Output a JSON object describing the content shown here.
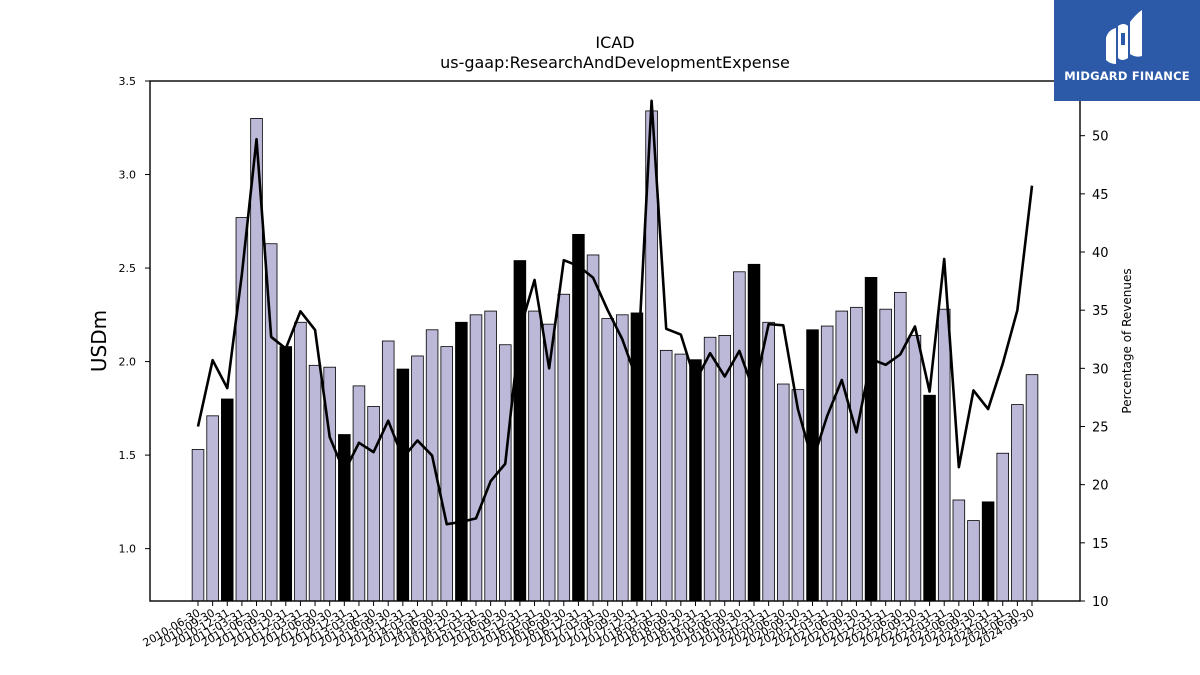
{
  "brand": {
    "name": "MIDGARD FINANCE",
    "icon": "midgard-logo-icon",
    "bg_color": "#2c5aa9"
  },
  "chart_data": {
    "type": "bar",
    "title": "ICAD",
    "subtitle": "us-gaap:ResearchAndDevelopmentExpense",
    "ylabel": "USDm",
    "y2label": "Percentage of Revenues",
    "ylim": [
      0.72,
      3.5
    ],
    "y2lim": [
      10,
      54.7
    ],
    "yticks": [
      "1.0",
      "1.5",
      "2.0",
      "2.5",
      "3.0",
      "3.5"
    ],
    "y2ticks": [
      "10",
      "15",
      "20",
      "25",
      "30",
      "35",
      "40",
      "45",
      "50"
    ],
    "bar_color": "#bcb9d8",
    "highlight_color": "#000000",
    "line_color": "#000000",
    "categories": [
      "2010-06-30",
      "2010-09-30",
      "2010-12-31",
      "2011-03-31",
      "2011-06-30",
      "2011-09-30",
      "2011-12-31",
      "2012-03-31",
      "2012-06-30",
      "2012-09-30",
      "2012-12-31",
      "2013-03-31",
      "2013-06-30",
      "2013-09-30",
      "2013-12-31",
      "2014-03-31",
      "2014-06-30",
      "2014-09-30",
      "2014-12-31",
      "2015-03-31",
      "2015-06-30",
      "2015-09-30",
      "2015-12-31",
      "2016-03-31",
      "2016-06-30",
      "2016-09-30",
      "2016-12-31",
      "2017-03-31",
      "2017-06-30",
      "2017-09-30",
      "2017-12-31",
      "2018-03-31",
      "2018-06-30",
      "2018-09-30",
      "2018-12-31",
      "2019-03-31",
      "2019-06-30",
      "2019-09-30",
      "2019-12-31",
      "2020-03-31",
      "2020-06-30",
      "2020-09-30",
      "2020-12-31",
      "2021-03-31",
      "2021-06-30",
      "2021-09-30",
      "2021-12-31",
      "2022-03-31",
      "2022-06-30",
      "2022-09-30",
      "2022-12-31",
      "2023-03-31",
      "2023-06-30",
      "2023-09-30",
      "2023-12-31",
      "2024-03-31",
      "2024-06-30",
      "2024-09-30"
    ],
    "series": [
      {
        "type": "bar",
        "values": [
          1.53,
          1.71,
          1.8,
          2.77,
          3.3,
          2.63,
          2.08,
          2.21,
          1.98,
          1.97,
          1.61,
          1.87,
          1.76,
          2.11,
          1.96,
          2.03,
          2.17,
          2.08,
          2.21,
          2.25,
          2.27,
          2.09,
          2.54,
          2.27,
          2.2,
          2.36,
          2.68,
          2.57,
          2.23,
          2.25,
          2.26,
          3.34,
          2.06,
          2.04,
          2.01,
          2.13,
          2.14,
          2.48,
          2.52,
          2.21,
          1.88,
          1.85,
          2.17,
          2.19,
          2.27,
          2.29,
          2.45,
          2.28,
          2.37,
          2.14,
          1.82,
          2.28,
          1.26,
          1.15,
          1.25,
          1.51,
          1.77,
          1.93
        ],
        "highlight": [
          false,
          false,
          true,
          false,
          false,
          false,
          true,
          false,
          false,
          false,
          true,
          false,
          false,
          false,
          true,
          false,
          false,
          false,
          true,
          false,
          false,
          false,
          true,
          false,
          false,
          false,
          true,
          false,
          false,
          false,
          true,
          false,
          false,
          false,
          true,
          false,
          false,
          false,
          true,
          false,
          false,
          false,
          true,
          false,
          false,
          false,
          true,
          false,
          false,
          false,
          true,
          false,
          false,
          false,
          true,
          false,
          false,
          false
        ]
      },
      {
        "type": "line",
        "axis": "right",
        "values": [
          25.0,
          30.7,
          28.3,
          38.1,
          49.7,
          32.7,
          31.7,
          34.9,
          33.3,
          24.1,
          21.1,
          23.6,
          22.8,
          25.5,
          22.3,
          23.8,
          22.5,
          16.6,
          16.8,
          17.1,
          20.3,
          21.8,
          33.3,
          37.6,
          30.0,
          39.3,
          38.8,
          37.8,
          35.0,
          32.5,
          29.0,
          53.0,
          33.4,
          32.9,
          28.9,
          31.3,
          29.3,
          31.5,
          28.0,
          33.8,
          33.7,
          26.5,
          22.0,
          25.9,
          29.0,
          24.5,
          30.8,
          30.3,
          31.2,
          33.6,
          28.0,
          39.4,
          21.5,
          28.1,
          26.5,
          30.4,
          35.0,
          45.7
        ]
      }
    ],
    "legend": "none",
    "grid": false
  }
}
